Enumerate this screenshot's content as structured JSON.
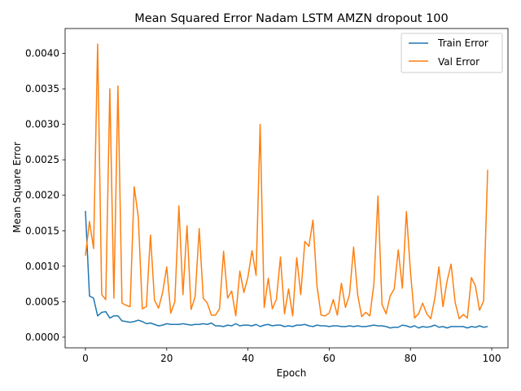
{
  "chart_data": {
    "type": "line",
    "title": "Mean Squared Error  Nadam LSTM AMZN dropout 100",
    "xlabel": "Epoch",
    "ylabel": "Mean Square Error",
    "xlim": [
      -5,
      104
    ],
    "ylim": [
      -0.00015,
      0.00435
    ],
    "xticks": [
      0,
      20,
      40,
      60,
      80,
      100
    ],
    "yticks": [
      0.0,
      0.0005,
      0.001,
      0.0015,
      0.002,
      0.0025,
      0.003,
      0.0035,
      0.004
    ],
    "ytick_labels": [
      "0.0000",
      "0.0005",
      "0.0010",
      "0.0015",
      "0.0020",
      "0.0025",
      "0.0030",
      "0.0035",
      "0.0040"
    ],
    "grid": false,
    "legend_position": "top-right",
    "series": [
      {
        "name": "Train Error",
        "color": "#1f77b4",
        "values": [
          0.00178,
          0.00058,
          0.00055,
          0.0003,
          0.00035,
          0.00036,
          0.00027,
          0.0003,
          0.0003,
          0.00023,
          0.00022,
          0.00021,
          0.00022,
          0.00024,
          0.00022,
          0.00019,
          0.0002,
          0.00018,
          0.00016,
          0.00017,
          0.00019,
          0.00018,
          0.00018,
          0.00018,
          0.00019,
          0.00018,
          0.00017,
          0.00018,
          0.00018,
          0.00019,
          0.00018,
          0.0002,
          0.00016,
          0.00016,
          0.00015,
          0.00017,
          0.00016,
          0.00019,
          0.00016,
          0.00017,
          0.00017,
          0.00016,
          0.00018,
          0.00015,
          0.00017,
          0.00018,
          0.00016,
          0.00017,
          0.00017,
          0.00015,
          0.00016,
          0.00015,
          0.00017,
          0.00017,
          0.00018,
          0.00016,
          0.00015,
          0.00017,
          0.00016,
          0.00016,
          0.00015,
          0.00016,
          0.00016,
          0.00015,
          0.00015,
          0.00016,
          0.00015,
          0.00016,
          0.00015,
          0.00015,
          0.00016,
          0.00017,
          0.00016,
          0.00016,
          0.00015,
          0.00013,
          0.00014,
          0.00014,
          0.00017,
          0.00016,
          0.00014,
          0.00016,
          0.00013,
          0.00015,
          0.00014,
          0.00015,
          0.00017,
          0.00014,
          0.00015,
          0.00013,
          0.00015,
          0.00015,
          0.00015,
          0.00015,
          0.00013,
          0.00015,
          0.00014,
          0.00016,
          0.00014,
          0.00015
        ]
      },
      {
        "name": "Val Error",
        "color": "#ff7f0e",
        "values": [
          0.00115,
          0.00163,
          0.00125,
          0.00413,
          0.0006,
          0.00053,
          0.0035,
          0.00055,
          0.00354,
          0.00048,
          0.00045,
          0.00043,
          0.00212,
          0.0017,
          0.0004,
          0.00043,
          0.00144,
          0.00052,
          0.00041,
          0.00063,
          0.00099,
          0.00034,
          0.0005,
          0.00185,
          0.0006,
          0.00157,
          0.00039,
          0.00057,
          0.00153,
          0.00055,
          0.00048,
          0.00031,
          0.00031,
          0.0004,
          0.00121,
          0.00055,
          0.00065,
          0.0003,
          0.00093,
          0.00063,
          0.00085,
          0.00122,
          0.00087,
          0.003,
          0.00042,
          0.00083,
          0.0004,
          0.00053,
          0.00113,
          0.00033,
          0.00068,
          0.0003,
          0.00112,
          0.0006,
          0.00135,
          0.00128,
          0.00165,
          0.00072,
          0.00031,
          0.0003,
          0.00034,
          0.00053,
          0.00031,
          0.00076,
          0.00042,
          0.0006,
          0.00127,
          0.0006,
          0.00029,
          0.00035,
          0.0003,
          0.00075,
          0.00199,
          0.00046,
          0.00033,
          0.00058,
          0.00068,
          0.00123,
          0.00069,
          0.00177,
          0.00092,
          0.00027,
          0.00033,
          0.00048,
          0.00033,
          0.00026,
          0.00055,
          0.00099,
          0.00043,
          0.00079,
          0.00103,
          0.00049,
          0.00026,
          0.00032,
          0.00027,
          0.00084,
          0.00072,
          0.00038,
          0.00051,
          0.00236
        ]
      }
    ]
  }
}
